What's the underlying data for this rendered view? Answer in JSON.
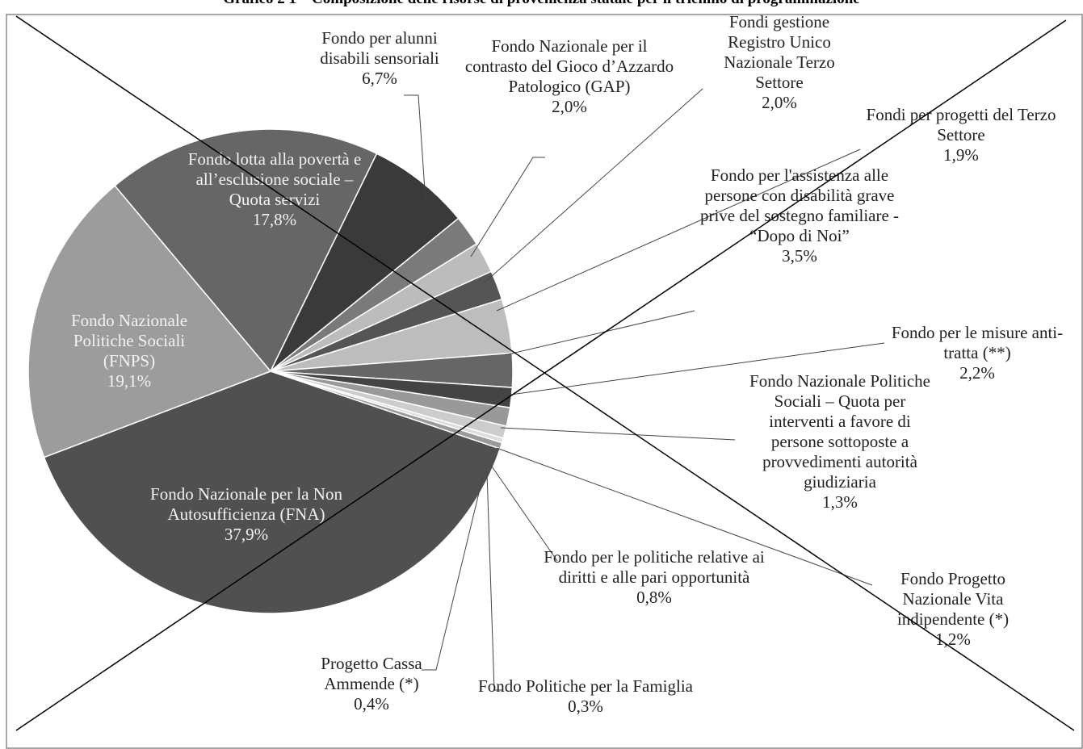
{
  "chart_data": {
    "type": "pie",
    "title": "Grafico 2 1 – Composizione delle risorse di provenienza statale per il triennio di programmazione",
    "categories": [
      "Fondo lotta alla povertà e all’esclusione sociale – Quota servizi",
      "Fondo per alunni disabili sensoriali",
      "Fondo Nazionale per il contrasto del Gioco d’Azzardo Patologico (GAP)",
      "Fondi gestione Registro Unico Nazionale Terzo Settore",
      "Fondi per progetti del Terzo Settore",
      "Fondo per l'assistenza alle persone con disabilità grave prive del sostegno familiare - “Dopo di Noi”",
      "Fondo per le misure anti-tratta (**)",
      "Fondo Nazionale Politiche Sociali – Quota per interventi a favore di persone sottoposte a provvedimenti autorità giudiziaria",
      "Fondo Progetto Nazionale Vita indipendente (*)",
      "Fondo per le politiche relative ai diritti e alle pari opportunità",
      "Fondo Politiche per la Famiglia",
      "Progetto Cassa Ammende (*)",
      "Fondo Nazionale per la Non Autosufficienza (FNA)",
      "Fondo Nazionale Politiche Sociali (FNPS)"
    ],
    "values": [
      17.8,
      6.7,
      2.0,
      2.0,
      1.9,
      3.5,
      2.2,
      1.3,
      1.2,
      0.8,
      0.3,
      0.4,
      37.9,
      19.1
    ],
    "value_labels": [
      "17,8%",
      "6,7%",
      "2,0%",
      "2,0%",
      "1,9%",
      "3,5%",
      "2,2%",
      "1,3%",
      "1,2%",
      "0,8%",
      "0,3%",
      "0,4%",
      "37,9%",
      "19,1%"
    ],
    "colors": [
      "#666666",
      "#3a3a3a",
      "#7a7a7a",
      "#bcbcbc",
      "#555555",
      "#bdbdbd",
      "#666666",
      "#444444",
      "#999999",
      "#cccccc",
      "#dddddd",
      "#9a9a9a",
      "#505050",
      "#9c9c9c"
    ]
  }
}
